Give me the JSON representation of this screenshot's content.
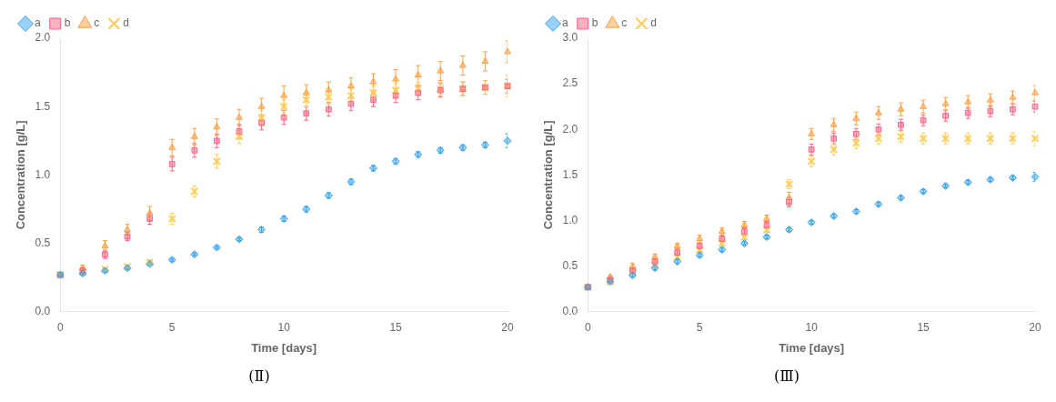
{
  "chart_data": [
    {
      "type": "scatter",
      "title": "(Ⅱ)",
      "xlabel": "Time [days]",
      "ylabel": "Concentration [g/L]",
      "xlim": [
        0,
        20
      ],
      "xticks": [
        0,
        5,
        10,
        15,
        20
      ],
      "ylim": [
        0,
        2.0
      ],
      "yticks": [
        {
          "value": 0,
          "label": "0.0"
        },
        0.5,
        {
          "value": 1.0,
          "label": "1.0"
        },
        1.5,
        {
          "value": 2.0,
          "label": "2.0"
        }
      ],
      "grid": false,
      "legend": "upper left",
      "x": [
        0,
        1,
        2,
        3,
        4,
        5,
        6,
        7,
        8,
        9,
        10,
        11,
        12,
        13,
        14,
        15,
        16,
        17,
        18,
        19,
        20
      ],
      "series": [
        {
          "name": "a",
          "marker": "D",
          "values": [
            0.27,
            0.28,
            0.3,
            0.32,
            0.35,
            0.38,
            0.42,
            0.47,
            0.53,
            0.6,
            0.68,
            0.75,
            0.85,
            0.95,
            1.05,
            1.1,
            1.15,
            1.18,
            1.2,
            1.22,
            1.25
          ],
          "yerr": [
            0.01,
            0.01,
            0.01,
            0.01,
            0.01,
            0.01,
            0.01,
            0.01,
            0.01,
            0.02,
            0.02,
            0.02,
            0.02,
            0.02,
            0.02,
            0.02,
            0.02,
            0.02,
            0.02,
            0.02,
            0.05
          ]
        },
        {
          "name": "b",
          "marker": "s",
          "values": [
            0.27,
            0.3,
            0.42,
            0.55,
            0.68,
            1.08,
            1.18,
            1.25,
            1.32,
            1.38,
            1.42,
            1.45,
            1.48,
            1.52,
            1.55,
            1.58,
            1.6,
            1.62,
            1.63,
            1.64,
            1.65
          ],
          "yerr": [
            0.01,
            0.02,
            0.03,
            0.03,
            0.04,
            0.05,
            0.05,
            0.05,
            0.05,
            0.05,
            0.05,
            0.05,
            0.05,
            0.05,
            0.05,
            0.05,
            0.05,
            0.05,
            0.05,
            0.05,
            0.05
          ]
        },
        {
          "name": "c",
          "marker": "^",
          "values": [
            0.27,
            0.32,
            0.48,
            0.6,
            0.72,
            1.2,
            1.28,
            1.35,
            1.42,
            1.5,
            1.58,
            1.6,
            1.62,
            1.65,
            1.68,
            1.7,
            1.73,
            1.76,
            1.8,
            1.83,
            1.9
          ],
          "yerr": [
            0.01,
            0.02,
            0.04,
            0.04,
            0.05,
            0.06,
            0.06,
            0.06,
            0.06,
            0.06,
            0.07,
            0.06,
            0.06,
            0.06,
            0.06,
            0.07,
            0.07,
            0.07,
            0.07,
            0.07,
            0.08
          ]
        },
        {
          "name": "d",
          "marker": "x",
          "values": [
            0.27,
            0.29,
            0.31,
            0.33,
            0.36,
            0.68,
            0.88,
            1.1,
            1.28,
            1.42,
            1.5,
            1.55,
            1.57,
            1.58,
            1.6,
            1.62,
            1.63,
            1.63,
            1.63,
            1.64,
            1.65
          ],
          "yerr": [
            0.01,
            0.01,
            0.01,
            0.01,
            0.02,
            0.04,
            0.04,
            0.05,
            0.05,
            0.05,
            0.05,
            0.05,
            0.05,
            0.05,
            0.05,
            0.05,
            0.05,
            0.05,
            0.05,
            0.05,
            0.08
          ]
        }
      ]
    },
    {
      "type": "scatter",
      "title": "(Ⅲ)",
      "xlabel": "Time [days]",
      "ylabel": "Concentration [g/L]",
      "xlim": [
        0,
        20
      ],
      "xticks": [
        0,
        5,
        10,
        15,
        20
      ],
      "ylim": [
        0,
        3.0
      ],
      "yticks": [
        {
          "value": 0,
          "label": "0.0"
        },
        0.5,
        {
          "value": 1.0,
          "label": "1.0"
        },
        1.5,
        {
          "value": 2.0,
          "label": "2.0"
        },
        2.5,
        {
          "value": 3.0,
          "label": "3.0"
        }
      ],
      "grid": false,
      "legend": "upper left",
      "x": [
        0,
        1,
        2,
        3,
        4,
        5,
        6,
        7,
        8,
        9,
        10,
        11,
        12,
        13,
        14,
        15,
        16,
        17,
        18,
        19,
        20
      ],
      "series": [
        {
          "name": "a",
          "marker": "D",
          "values": [
            0.27,
            0.33,
            0.4,
            0.48,
            0.55,
            0.62,
            0.68,
            0.75,
            0.82,
            0.9,
            0.98,
            1.05,
            1.1,
            1.18,
            1.25,
            1.32,
            1.38,
            1.42,
            1.45,
            1.47,
            1.48
          ],
          "yerr": [
            0.01,
            0.02,
            0.02,
            0.02,
            0.02,
            0.02,
            0.02,
            0.02,
            0.02,
            0.02,
            0.02,
            0.02,
            0.02,
            0.02,
            0.02,
            0.02,
            0.02,
            0.02,
            0.02,
            0.02,
            0.05
          ]
        },
        {
          "name": "b",
          "marker": "s",
          "values": [
            0.27,
            0.35,
            0.45,
            0.55,
            0.65,
            0.72,
            0.8,
            0.88,
            0.95,
            1.2,
            1.78,
            1.9,
            1.95,
            2.0,
            2.05,
            2.1,
            2.15,
            2.18,
            2.2,
            2.22,
            2.25
          ],
          "yerr": [
            0.01,
            0.02,
            0.03,
            0.03,
            0.03,
            0.03,
            0.03,
            0.04,
            0.04,
            0.05,
            0.06,
            0.06,
            0.06,
            0.06,
            0.06,
            0.06,
            0.06,
            0.06,
            0.06,
            0.06,
            0.06
          ]
        },
        {
          "name": "c",
          "marker": "^",
          "values": [
            0.27,
            0.38,
            0.5,
            0.6,
            0.72,
            0.8,
            0.88,
            0.95,
            1.02,
            1.25,
            1.95,
            2.05,
            2.12,
            2.18,
            2.22,
            2.25,
            2.28,
            2.3,
            2.32,
            2.35,
            2.4
          ],
          "yerr": [
            0.01,
            0.02,
            0.03,
            0.03,
            0.03,
            0.04,
            0.04,
            0.04,
            0.04,
            0.06,
            0.06,
            0.07,
            0.07,
            0.07,
            0.07,
            0.07,
            0.07,
            0.07,
            0.07,
            0.07,
            0.08
          ]
        },
        {
          "name": "d",
          "marker": "x",
          "values": [
            0.27,
            0.33,
            0.43,
            0.52,
            0.6,
            0.68,
            0.75,
            0.82,
            0.9,
            1.4,
            1.65,
            1.78,
            1.85,
            1.9,
            1.92,
            1.9,
            1.9,
            1.9,
            1.9,
            1.9,
            1.9
          ],
          "yerr": [
            0.01,
            0.02,
            0.02,
            0.02,
            0.02,
            0.03,
            0.03,
            0.03,
            0.03,
            0.05,
            0.06,
            0.06,
            0.06,
            0.06,
            0.06,
            0.06,
            0.06,
            0.06,
            0.06,
            0.06,
            0.08
          ]
        }
      ]
    }
  ]
}
